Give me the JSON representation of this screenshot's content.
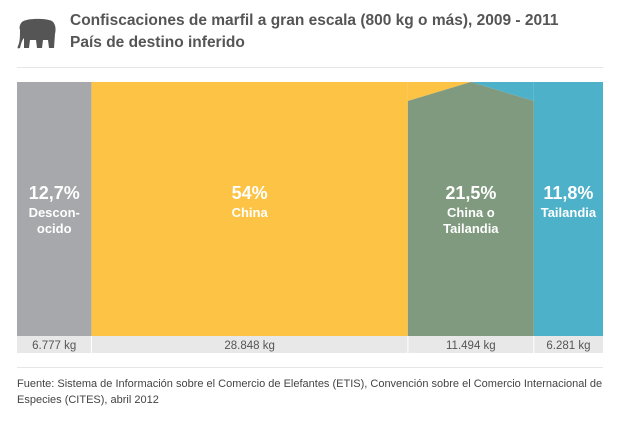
{
  "header": {
    "title": "Confiscaciones de marfil a gran escala (800 kg o más), 2009 - 2011",
    "subtitle": "País de destino inferido",
    "icon": "elephant-icon"
  },
  "chart_data": {
    "type": "bar",
    "title": "Confiscaciones de marfil a gran escala (800 kg o más), 2009 - 2011",
    "subtitle": "País de destino inferido",
    "categories": [
      "Descon-ocido",
      "China",
      "China o Tailandia",
      "Tailandia"
    ],
    "series": [
      {
        "values": [
          12.7,
          54,
          21.5,
          11.8
        ],
        "percent_labels": [
          "12,7%",
          "54%",
          "21,5%",
          "11,8%"
        ],
        "weight_labels": [
          "6.777 kg",
          "28.848 kg",
          "11.494 kg",
          "6.281 kg"
        ]
      }
    ],
    "name_lines": [
      [
        "Descon-",
        "ocido"
      ],
      [
        "China"
      ],
      [
        "China o",
        "Tailandia"
      ],
      [
        "Tailandia"
      ]
    ],
    "colors": [
      "#a7a8ab",
      "#fcc344",
      "#7f9a7e",
      "#4db1ca"
    ],
    "label_bar_color": "#e8e8e8"
  },
  "footer": {
    "source": "Fuente: Sistema de Información sobre el Comercio de Elefantes (ETIS), Convención sobre el Comercio Internacional de Especies (CITES), abril 2012"
  }
}
